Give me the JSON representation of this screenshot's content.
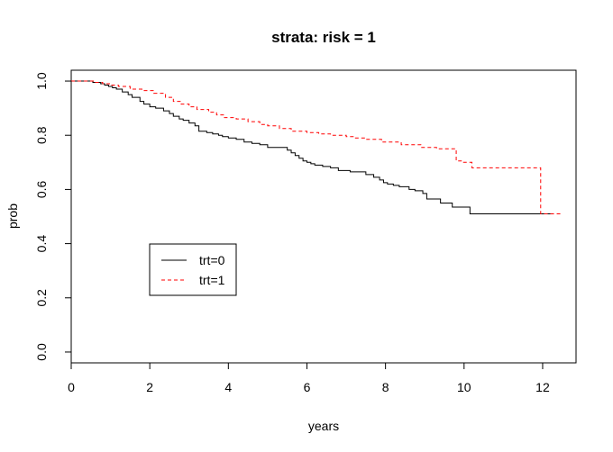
{
  "chart_data": {
    "type": "line",
    "chart_style": "step",
    "title": "strata: risk = 1",
    "xlabel": "years",
    "ylabel": "prob",
    "xlim": [
      0,
      12.85
    ],
    "ylim": [
      -0.04,
      1.04
    ],
    "xticks": [
      0,
      2,
      4,
      6,
      8,
      10,
      12
    ],
    "yticks": [
      0.0,
      0.2,
      0.4,
      0.6,
      0.8,
      1.0
    ],
    "grid": false,
    "legend_position": "left",
    "series": [
      {
        "name": "trt=0",
        "color": "#000000",
        "line_style": "solid",
        "x": [
          0,
          0.55,
          0.75,
          0.85,
          0.95,
          1.05,
          1.15,
          1.3,
          1.45,
          1.55,
          1.75,
          1.85,
          2.0,
          2.15,
          2.35,
          2.5,
          2.6,
          2.75,
          2.85,
          3.0,
          3.15,
          3.25,
          3.45,
          3.6,
          3.75,
          3.85,
          4.0,
          4.2,
          4.4,
          4.6,
          4.8,
          5.0,
          5.5,
          5.6,
          5.7,
          5.8,
          5.9,
          6.0,
          6.1,
          6.2,
          6.4,
          6.6,
          6.8,
          7.1,
          7.5,
          7.7,
          7.85,
          7.95,
          8.05,
          8.2,
          8.35,
          8.6,
          8.75,
          8.95,
          9.05,
          9.4,
          9.7,
          10.15,
          12.2
        ],
        "y": [
          1.0,
          0.995,
          0.99,
          0.985,
          0.98,
          0.975,
          0.97,
          0.96,
          0.95,
          0.94,
          0.925,
          0.915,
          0.905,
          0.9,
          0.89,
          0.88,
          0.87,
          0.86,
          0.855,
          0.845,
          0.835,
          0.815,
          0.81,
          0.805,
          0.8,
          0.795,
          0.79,
          0.785,
          0.775,
          0.77,
          0.765,
          0.755,
          0.745,
          0.735,
          0.725,
          0.715,
          0.705,
          0.7,
          0.695,
          0.69,
          0.685,
          0.68,
          0.67,
          0.665,
          0.655,
          0.645,
          0.635,
          0.625,
          0.62,
          0.615,
          0.61,
          0.6,
          0.595,
          0.585,
          0.565,
          0.55,
          0.535,
          0.51,
          0.51
        ]
      },
      {
        "name": "trt=1",
        "color": "#ff0000",
        "line_style": "dashed",
        "x": [
          0,
          0.6,
          0.8,
          1.0,
          1.2,
          1.5,
          1.8,
          2.1,
          2.4,
          2.6,
          2.8,
          3.0,
          3.2,
          3.5,
          3.7,
          3.9,
          4.2,
          4.5,
          4.8,
          5.0,
          5.3,
          5.6,
          6.0,
          6.3,
          6.6,
          7.0,
          7.2,
          7.5,
          7.9,
          8.4,
          8.9,
          9.3,
          9.8,
          9.95,
          10.2,
          11.95,
          12.45
        ],
        "y": [
          1.0,
          0.995,
          0.99,
          0.985,
          0.98,
          0.97,
          0.965,
          0.955,
          0.94,
          0.925,
          0.915,
          0.905,
          0.895,
          0.885,
          0.875,
          0.865,
          0.86,
          0.85,
          0.84,
          0.835,
          0.825,
          0.815,
          0.81,
          0.805,
          0.8,
          0.795,
          0.79,
          0.785,
          0.775,
          0.765,
          0.755,
          0.75,
          0.705,
          0.7,
          0.68,
          0.51,
          0.51
        ]
      }
    ]
  }
}
